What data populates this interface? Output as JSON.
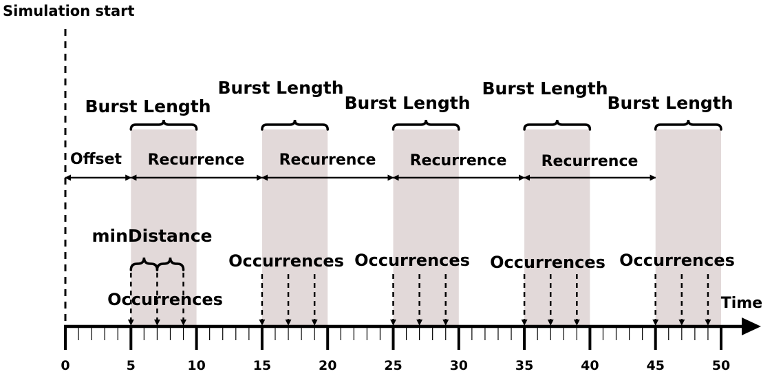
{
  "labels": {
    "simulation_start": "Simulation start",
    "burst_length": "Burst Length",
    "offset": "Offset",
    "recurrence": "Recurrence",
    "min_distance": "minDistance",
    "occurrences": "Occurrences",
    "time": "Time"
  },
  "colors": {
    "burst_fill": "#e2d9d9",
    "ink": "#000000"
  },
  "timeline": {
    "min": 0,
    "max": 50,
    "major_step": 5,
    "minor_step": 1,
    "tick_labels": [
      "0",
      "5",
      "10",
      "15",
      "20",
      "25",
      "30",
      "35",
      "40",
      "45",
      "50"
    ]
  },
  "model": {
    "offset": 5,
    "recurrence": 10,
    "burst_length": 5,
    "min_distance": 2,
    "bursts": [
      {
        "start": 5,
        "end": 10,
        "occurrences": [
          5,
          7,
          9
        ]
      },
      {
        "start": 15,
        "end": 20,
        "occurrences": [
          15,
          17,
          19
        ]
      },
      {
        "start": 25,
        "end": 30,
        "occurrences": [
          25,
          27,
          29
        ]
      },
      {
        "start": 35,
        "end": 40,
        "occurrences": [
          35,
          37,
          39
        ]
      },
      {
        "start": 45,
        "end": 50,
        "occurrences": [
          45,
          47,
          49
        ]
      }
    ]
  }
}
